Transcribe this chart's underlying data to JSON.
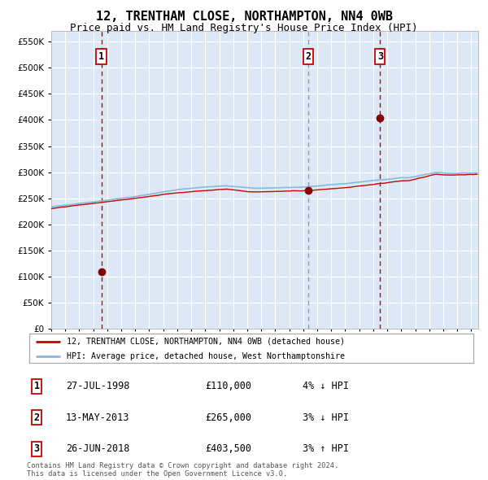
{
  "title": "12, TRENTHAM CLOSE, NORTHAMPTON, NN4 0WB",
  "subtitle": "Price paid vs. HM Land Registry's House Price Index (HPI)",
  "title_fontsize": 11,
  "subtitle_fontsize": 9,
  "bg_color": "#dce8f5",
  "legend_line1": "12, TRENTHAM CLOSE, NORTHAMPTON, NN4 0WB (detached house)",
  "legend_line2": "HPI: Average price, detached house, West Northamptonshire",
  "sale_date1": "27-JUL-1998",
  "sale_price1": 110000,
  "sale_pct1": "4% ↓ HPI",
  "sale_date2": "13-MAY-2013",
  "sale_price2": 265000,
  "sale_pct2": "3% ↓ HPI",
  "sale_date3": "26-JUN-2018",
  "sale_price3": 403500,
  "sale_pct3": "3% ↑ HPI",
  "hpi_color": "#88b8e0",
  "price_color": "#cc0000",
  "sale_dot_color": "#880000",
  "footer": "Contains HM Land Registry data © Crown copyright and database right 2024.\nThis data is licensed under the Open Government Licence v3.0.",
  "ylim": [
    0,
    570000
  ],
  "yticks": [
    0,
    50000,
    100000,
    150000,
    200000,
    250000,
    300000,
    350000,
    400000,
    450000,
    500000,
    550000
  ],
  "sale1_year": 1998.58,
  "sale2_year": 2013.37,
  "sale3_year": 2018.49,
  "xmin": 1995,
  "xmax": 2025.5
}
